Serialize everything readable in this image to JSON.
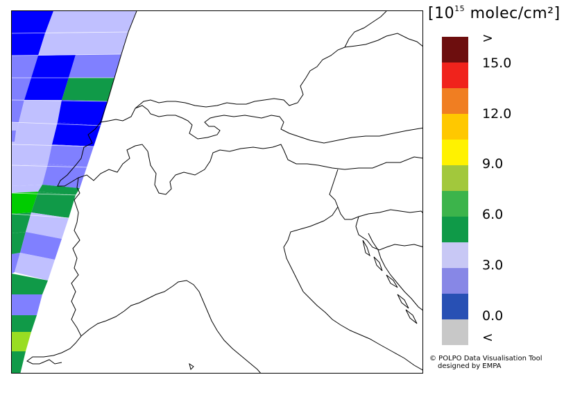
{
  "units": {
    "prefix": "[10",
    "exponent": "15",
    "suffix": " molec/cm²]"
  },
  "legend": {
    "colors": [
      "#6d0e0e",
      "#f0231c",
      "#f07e22",
      "#ffc800",
      "#fff200",
      "#a2c83c",
      "#3cb44b",
      "#0f9a48",
      "#c8c8f5",
      "#8787e6",
      "#2850b4",
      "#c8c8c8"
    ],
    "ticks": [
      ">",
      "15.0",
      "12.0",
      "9.0",
      "6.0",
      "3.0",
      "0.0",
      "<"
    ]
  },
  "credit": {
    "line1": "© POLPO Data Visualisation Tool",
    "line2": "designed by EMPA"
  },
  "map": {
    "region": "Alps and Northern Italy",
    "swath_colors": {
      "blue": "#0000ff",
      "medium_blue": "#8080ff",
      "light_blue": "#c0c0ff",
      "green": "#109a48",
      "bright_green": "#00cc00",
      "lime": "#99dd22"
    }
  }
}
